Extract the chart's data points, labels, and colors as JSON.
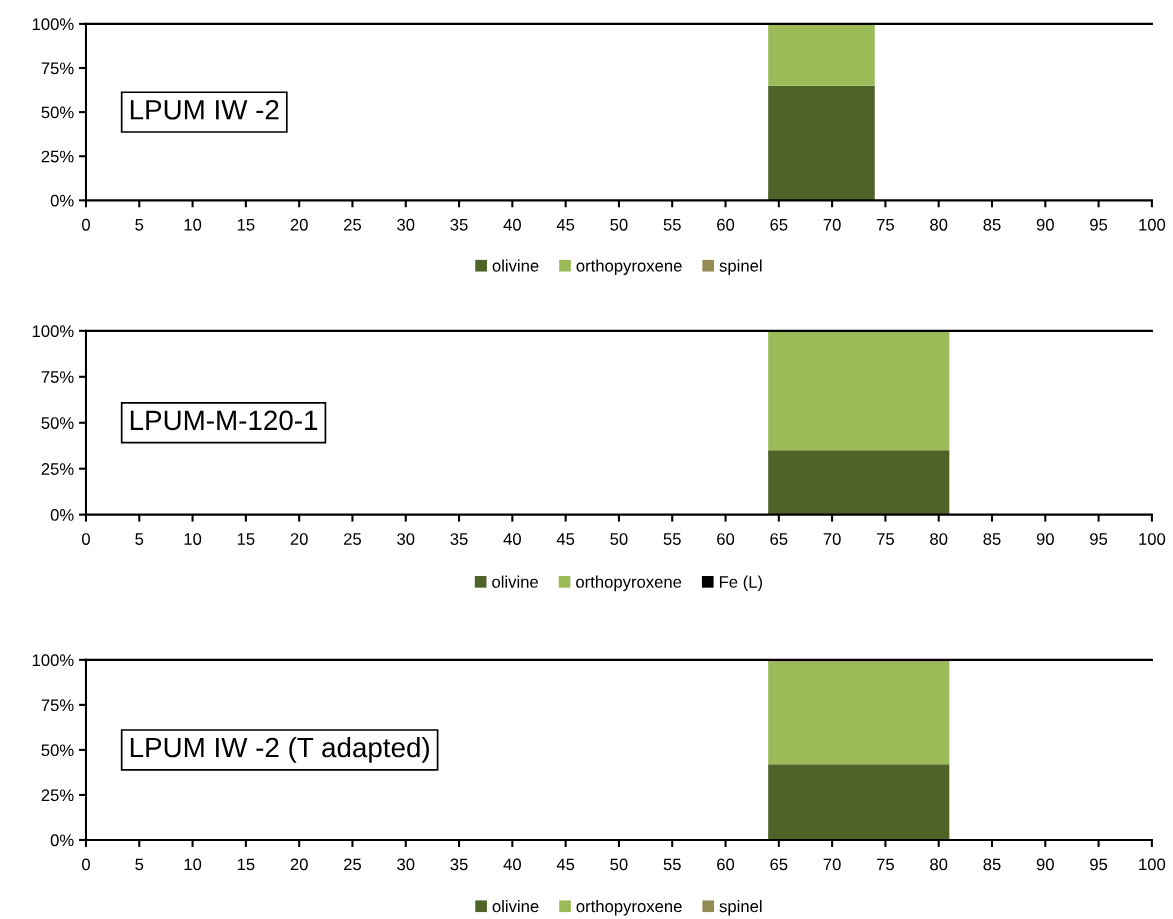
{
  "chart_data": [
    {
      "type": "area",
      "stacked": true,
      "x": [
        64,
        74
      ],
      "xlim": [
        0,
        100
      ],
      "xticks": [
        0,
        5,
        10,
        15,
        20,
        25,
        30,
        35,
        40,
        45,
        50,
        55,
        60,
        65,
        70,
        75,
        80,
        85,
        90,
        95,
        100
      ],
      "ylim": [
        0,
        100
      ],
      "yticks": [
        {
          "value": 0,
          "label": "0%"
        },
        {
          "value": 25,
          "label": "25%"
        },
        {
          "value": 50,
          "label": "50%"
        },
        {
          "value": 75,
          "label": "75%"
        },
        {
          "value": 100,
          "label": "100%"
        }
      ],
      "legend": "bottom",
      "grid": false,
      "annotations": [
        "LPUM IW -2"
      ],
      "series": [
        {
          "name": "olivine",
          "color": "#4f6228",
          "values": [
            65,
            65
          ]
        },
        {
          "name": "orthopyroxene",
          "color": "#9bbb59",
          "values": [
            35,
            35
          ]
        },
        {
          "name": "spinel",
          "color": "#948a54",
          "values": [
            null,
            null
          ]
        }
      ]
    },
    {
      "type": "area",
      "stacked": true,
      "x": [
        64,
        81
      ],
      "xlim": [
        0,
        100
      ],
      "xticks": [
        0,
        5,
        10,
        15,
        20,
        25,
        30,
        35,
        40,
        45,
        50,
        55,
        60,
        65,
        70,
        75,
        80,
        85,
        90,
        95,
        100
      ],
      "ylim": [
        0,
        100
      ],
      "yticks": [
        {
          "value": 0,
          "label": "0%"
        },
        {
          "value": 25,
          "label": "25%"
        },
        {
          "value": 50,
          "label": "50%"
        },
        {
          "value": 75,
          "label": "75%"
        },
        {
          "value": 100,
          "label": "100%"
        }
      ],
      "legend": "bottom",
      "grid": false,
      "annotations": [
        "LPUM-M-120-1"
      ],
      "series": [
        {
          "name": "olivine",
          "color": "#4f6228",
          "values": [
            35,
            35
          ]
        },
        {
          "name": "orthopyroxene",
          "color": "#9bbb59",
          "values": [
            65,
            65
          ]
        },
        {
          "name": "Fe (L)",
          "color": "#000000",
          "values": [
            null,
            null
          ]
        }
      ]
    },
    {
      "type": "area",
      "stacked": true,
      "x": [
        64,
        81
      ],
      "xlim": [
        0,
        100
      ],
      "xticks": [
        0,
        5,
        10,
        15,
        20,
        25,
        30,
        35,
        40,
        45,
        50,
        55,
        60,
        65,
        70,
        75,
        80,
        85,
        90,
        95,
        100
      ],
      "ylim": [
        0,
        100
      ],
      "yticks": [
        {
          "value": 0,
          "label": "0%"
        },
        {
          "value": 25,
          "label": "25%"
        },
        {
          "value": 50,
          "label": "50%"
        },
        {
          "value": 75,
          "label": "75%"
        },
        {
          "value": 100,
          "label": "100%"
        }
      ],
      "legend": "bottom",
      "grid": false,
      "annotations": [
        "LPUM IW -2 (T adapted)"
      ],
      "series": [
        {
          "name": "olivine",
          "color": "#4f6228",
          "values": [
            42,
            42
          ]
        },
        {
          "name": "orthopyroxene",
          "color": "#9bbb59",
          "values": [
            57,
            57
          ]
        },
        {
          "name": "spinel",
          "color": "#948a54",
          "values": [
            1,
            1
          ]
        }
      ]
    }
  ]
}
